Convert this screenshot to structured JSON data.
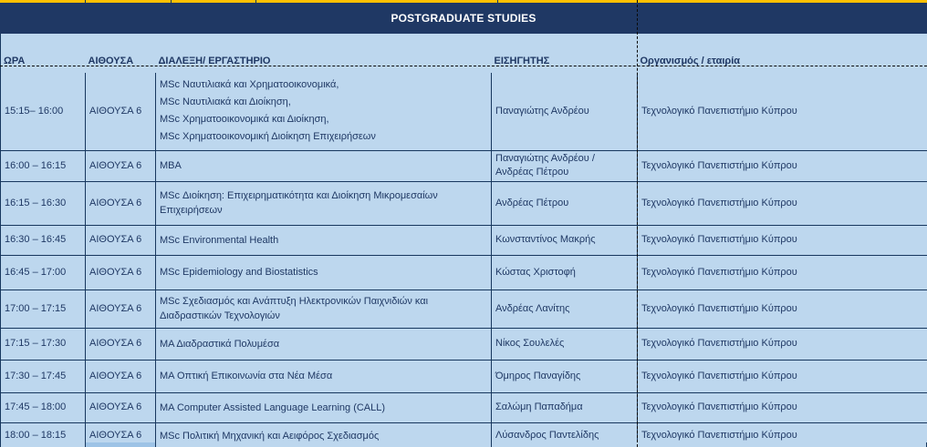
{
  "title": "POSTGRADUATE STUDIES",
  "colors": {
    "title_band": "#1F3864",
    "title_text": "#FFFFFF",
    "row_bg": "#BDD7EE",
    "room_bg": "#9DC3E6",
    "top_accent": "#FFC000",
    "grid": "#17375E",
    "text": "#1F3864"
  },
  "table": {
    "columns": [
      "ΩΡΑ",
      "ΑΙΘΟΥΣΑ",
      "ΔΙΑΛΕΞΗ/ ΕΡΓΑΣΤΗΡΙΟ",
      "ΕΙΣΗΓΗΤΗΣ",
      "Οργανισμός / εταιρία"
    ],
    "rows": [
      {
        "time": "15:15– 16:00",
        "room": "ΑΙΘΟΥΣΑ 6",
        "lecture_lines": [
          "MSc Ναυτιλιακά και Χρηματοοικονομικά,",
          "MSc Ναυτιλιακά και Διοίκηση,",
          "MSc Χρηματοοικονομικά και Διοίκηση,",
          "MSc Χρηματοοικονομική Διοίκηση Επιχειρήσεων"
        ],
        "presenter": "Παναγιώτης Ανδρέου",
        "org": "Τεχνολογικό Πανεπιστήμιο Κύπρου"
      },
      {
        "time": "16:00 – 16:15",
        "room": "ΑΙΘΟΥΣΑ 6",
        "lecture_lines": [
          "MBA"
        ],
        "presenter": "Παναγιώτης Ανδρέου / Ανδρέας Πέτρου",
        "org": "Τεχνολογικό Πανεπιστήμιο Κύπρου"
      },
      {
        "time": "16:15 – 16:30",
        "room": "ΑΙΘΟΥΣΑ 6",
        "lecture_lines": [
          "MSc Διοίκηση: Επιχειρηματικότητα και Διοίκηση Μικρομεσαίων Επιχειρήσεων"
        ],
        "presenter": "Ανδρέας Πέτρου",
        "org": "Τεχνολογικό Πανεπιστήμιο Κύπρου"
      },
      {
        "time": "16:30 – 16:45",
        "room": "ΑΙΘΟΥΣΑ 6",
        "lecture_lines": [
          "MSc Environmental Health"
        ],
        "presenter": "Κωνσταντίνος Μακρής",
        "org": "Τεχνολογικό Πανεπιστήμιο Κύπρου"
      },
      {
        "time": "16:45 – 17:00",
        "room": "ΑΙΘΟΥΣΑ 6",
        "lecture_lines": [
          "MSc Epidemiology and Biostatistics"
        ],
        "presenter": "Κώστας Χριστοφή",
        "org": "Τεχνολογικό Πανεπιστήμιο Κύπρου"
      },
      {
        "time": "17:00 – 17:15",
        "room": "ΑΙΘΟΥΣΑ 6",
        "lecture_lines": [
          "MSc Σχεδιασμός και Ανάπτυξη Ηλεκτρονικών Παιχνιδιών και Διαδραστικών Τεχνολογιών"
        ],
        "presenter": "Ανδρέας Λανίτης",
        "org": "Τεχνολογικό Πανεπιστήμιο Κύπρου"
      },
      {
        "time": "17:15 – 17:30",
        "room": "ΑΙΘΟΥΣΑ 6",
        "lecture_lines": [
          "ΜΑ Διαδραστικά Πολυμέσα"
        ],
        "presenter": "Νίκος Σουλελές",
        "org": "Τεχνολογικό Πανεπιστήμιο Κύπρου"
      },
      {
        "time": "17:30 – 17:45",
        "room": "ΑΙΘΟΥΣΑ 6",
        "lecture_lines": [
          "ΜΑ Οπτική Επικοινωνία στα Νέα Μέσα"
        ],
        "presenter": "Όμηρος Παναγίδης",
        "org": "Τεχνολογικό Πανεπιστήμιο Κύπρου"
      },
      {
        "time": "17:45 – 18:00",
        "room": "ΑΙΘΟΥΣΑ 6",
        "lecture_lines": [
          "MA Computer Assisted Language Learning (CALL)"
        ],
        "presenter": "Σαλώμη Παπαδήμα",
        "org": "Τεχνολογικό Πανεπιστήμιο Κύπρου"
      },
      {
        "time": "18:00 – 18:15",
        "room": "ΑΙΘΟΥΣΑ 6",
        "lecture_lines": [
          "MSc Πολιτική Μηχανική και Αειφόρος Σχεδιασμός"
        ],
        "presenter": "Λύσανδρος Παντελίδης",
        "org": "Τεχνολογικό Πανεπιστήμιο Κύπρου"
      }
    ]
  }
}
